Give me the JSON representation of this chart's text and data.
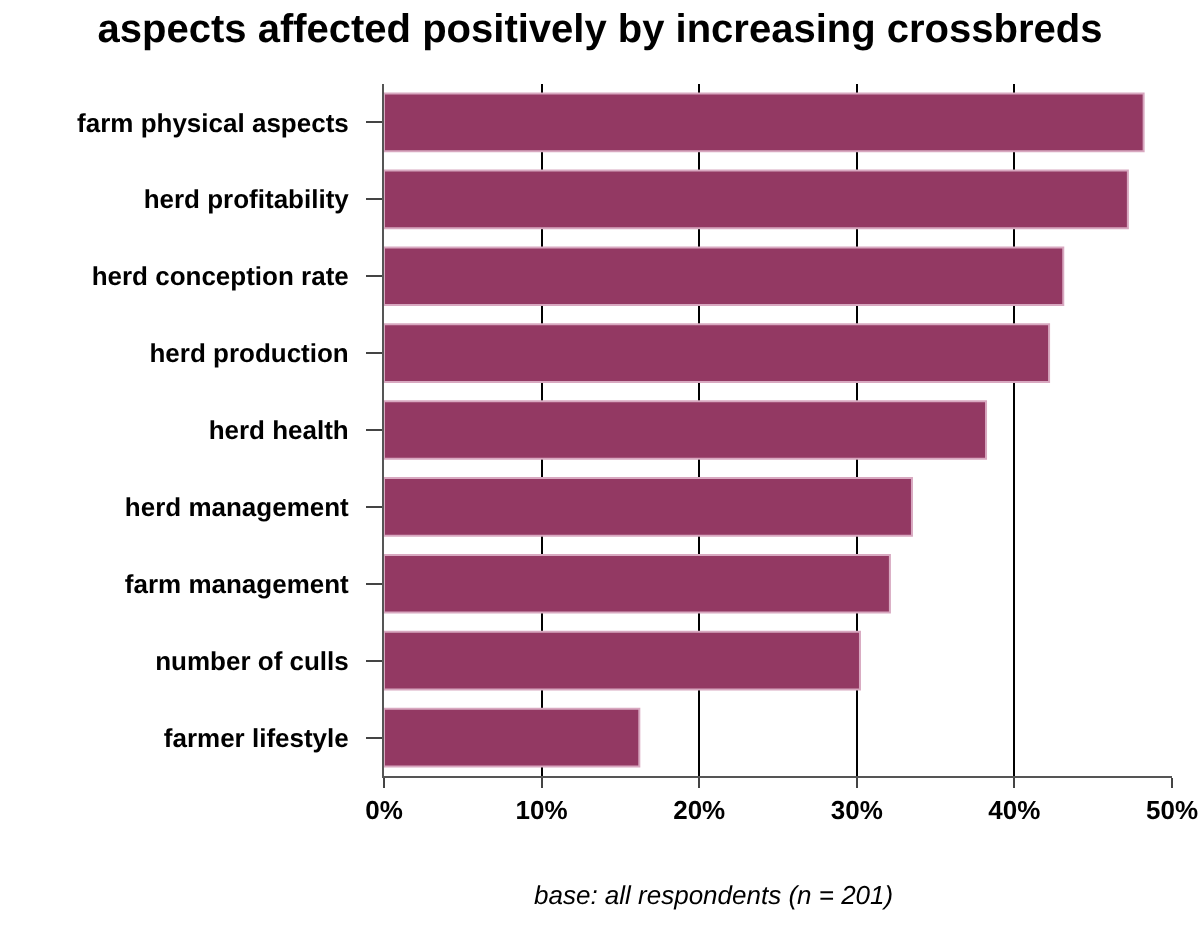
{
  "chart_data": {
    "type": "bar",
    "orientation": "horizontal",
    "title": "aspects affected positively by increasing crossbreds",
    "categories": [
      "farm physical aspects",
      "herd profitability",
      "herd conception rate",
      "herd production",
      "herd health",
      "herd management",
      "farm management",
      "number of culls",
      "farmer lifestyle"
    ],
    "values": [
      48.2,
      47.2,
      43.1,
      42.2,
      38.2,
      33.5,
      32.1,
      30.2,
      16.2
    ],
    "color": "#933963",
    "xlim": [
      0,
      50
    ],
    "xticks": [
      {
        "value": 0,
        "label": "0%"
      },
      {
        "value": 10,
        "label": "10%"
      },
      {
        "value": 20,
        "label": "20%"
      },
      {
        "value": 30,
        "label": "30%"
      },
      {
        "value": 40,
        "label": "40%"
      },
      {
        "value": 50,
        "label": "50%"
      }
    ],
    "grid": "x",
    "annotations": [
      "base: all respondents (n = 201)"
    ]
  }
}
